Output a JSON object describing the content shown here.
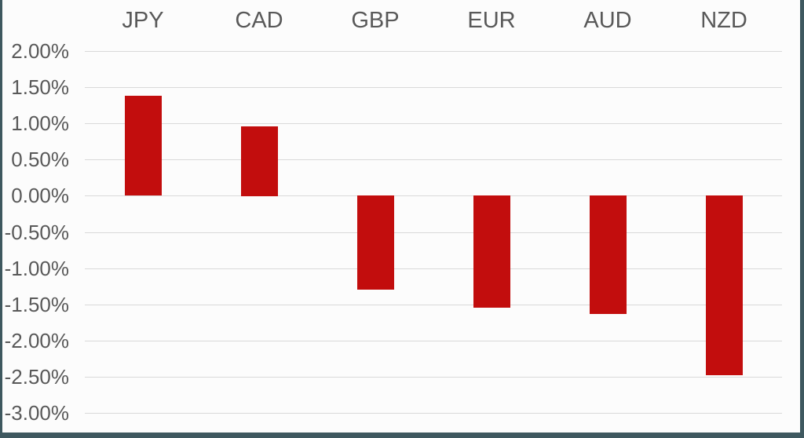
{
  "chart_data": {
    "type": "bar",
    "title": "",
    "xlabel": "",
    "ylabel": "",
    "categories": [
      "JPY",
      "CAD",
      "GBP",
      "EUR",
      "AUD",
      "NZD"
    ],
    "values": [
      1.38,
      0.96,
      -1.3,
      -1.55,
      -1.64,
      -2.48
    ],
    "value_unit": "%",
    "ylim": [
      -3.0,
      2.0
    ],
    "yticks": [
      2.0,
      1.5,
      1.0,
      0.5,
      0.0,
      -0.5,
      -1.0,
      -1.5,
      -2.0,
      -2.5,
      -3.0
    ],
    "ytick_labels": [
      "2.00%",
      "1.50%",
      "1.00%",
      "0.50%",
      "0.00%",
      "-0.50%",
      "-1.00%",
      "-1.50%",
      "-2.00%",
      "-2.50%",
      "-3.00%"
    ],
    "grid": true,
    "legend": false,
    "category_position": "top",
    "bar_color": "#c20d0d"
  },
  "colors": {
    "bar": "#c20d0d",
    "frame_border": "#3e585f",
    "gridline": "#d9d9d9",
    "text": "#595959",
    "background": "#fcfcfc"
  }
}
